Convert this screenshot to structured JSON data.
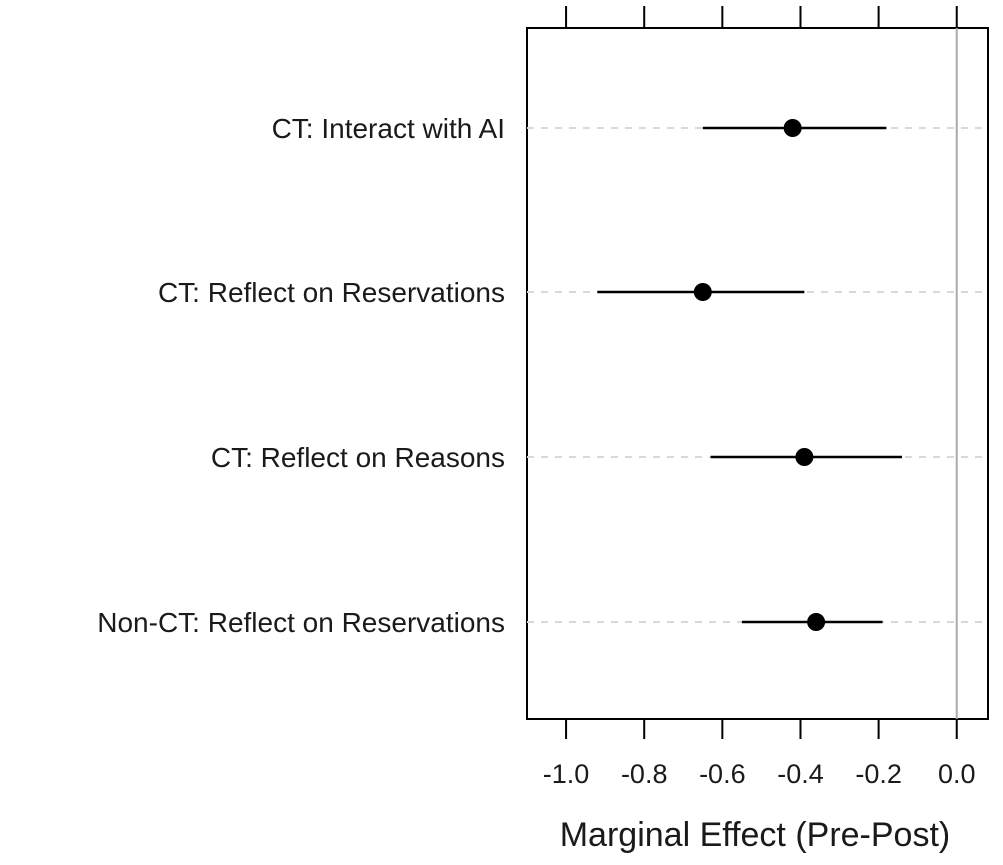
{
  "chart_data": {
    "type": "scatter",
    "orientation": "horizontal",
    "title": "",
    "xlabel": "Marginal Effect (Pre-Post)",
    "ylabel": "",
    "xlim": [
      -1.1,
      0.08
    ],
    "x_ticks": [
      -1.0,
      -0.8,
      -0.6,
      -0.4,
      -0.2,
      0.0
    ],
    "x_tick_labels": [
      "-1.0",
      "-0.8",
      "-0.6",
      "-0.4",
      "-0.2",
      "0.0"
    ],
    "reference_line": 0.0,
    "grid": "dashed horizontal guide per row",
    "categories": [
      "CT: Interact with AI",
      "CT: Reflect on Reservations",
      "CT: Reflect on Reasons",
      "Non-CT: Reflect on Reservations"
    ],
    "points": [
      {
        "estimate": -0.42,
        "lower": -0.65,
        "upper": -0.18
      },
      {
        "estimate": -0.65,
        "lower": -0.92,
        "upper": -0.39
      },
      {
        "estimate": -0.39,
        "lower": -0.63,
        "upper": -0.14
      },
      {
        "estimate": -0.36,
        "lower": -0.55,
        "upper": -0.19
      }
    ],
    "colors": {
      "point": "#000000",
      "interval": "#000000",
      "reference_line": "#aaaaaa",
      "guide": "#d9d9d9"
    }
  }
}
